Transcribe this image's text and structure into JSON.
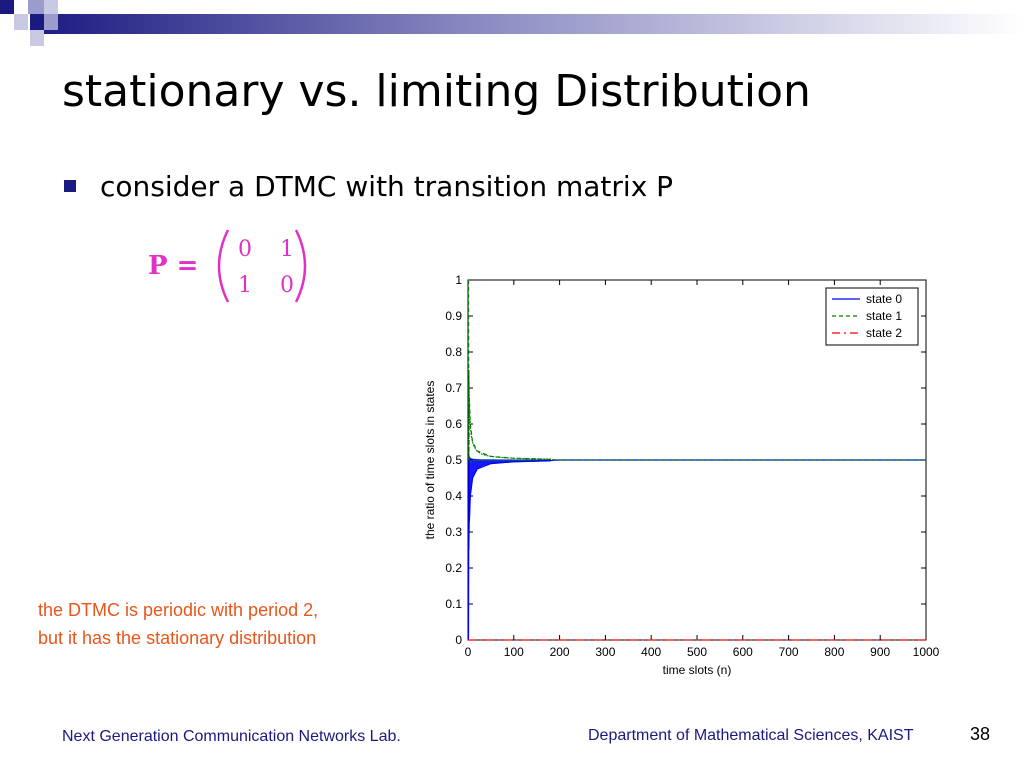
{
  "slide": {
    "title": "stationary vs. limiting Distribution",
    "bullet": "consider a DTMC with transition matrix P",
    "matrix": {
      "lhs": "P =",
      "rows": [
        [
          "0",
          "1"
        ],
        [
          "1",
          "0"
        ]
      ],
      "color": "#e030c8"
    },
    "note_lines": [
      "the DTMC is periodic with period 2,",
      "but it has the stationary distribution"
    ],
    "footer_left": "Next Generation Communication Networks Lab.",
    "footer_right": "Department of Mathematical Sciences, KAIST",
    "page_number": "38"
  },
  "chart_data": {
    "type": "line",
    "xlabel": "time slots (n)",
    "ylabel": "the ratio of time slots in states",
    "xlim": [
      0,
      1000
    ],
    "ylim": [
      0,
      1
    ],
    "xticks": [
      "0",
      "100",
      "200",
      "300",
      "400",
      "500",
      "600",
      "700",
      "800",
      "900",
      "1000"
    ],
    "yticks": [
      "0",
      "0.1",
      "0.2",
      "0.3",
      "0.4",
      "0.5",
      "0.6",
      "0.7",
      "0.8",
      "0.9",
      "1"
    ],
    "grid": false,
    "legend_position": "top-right",
    "series": [
      {
        "name": "state 0",
        "color": "#0000ff",
        "style": "solid",
        "x": [
          1,
          2,
          3,
          5,
          10,
          20,
          50,
          100,
          150,
          200,
          1000
        ],
        "y": [
          0.0,
          0.5,
          0.33,
          0.4,
          0.45,
          0.475,
          0.49,
          0.495,
          0.497,
          0.5,
          0.5
        ]
      },
      {
        "name": "state 1",
        "color": "#008000",
        "style": "dashed",
        "x": [
          1,
          2,
          3,
          5,
          10,
          20,
          50,
          100,
          150,
          200,
          1000
        ],
        "y": [
          1.0,
          0.5,
          0.67,
          0.6,
          0.55,
          0.525,
          0.51,
          0.505,
          0.503,
          0.5,
          0.5
        ]
      },
      {
        "name": "state 2",
        "color": "#ff0000",
        "style": "dashdot",
        "x": [
          0,
          1000
        ],
        "y": [
          0,
          0
        ]
      }
    ]
  }
}
